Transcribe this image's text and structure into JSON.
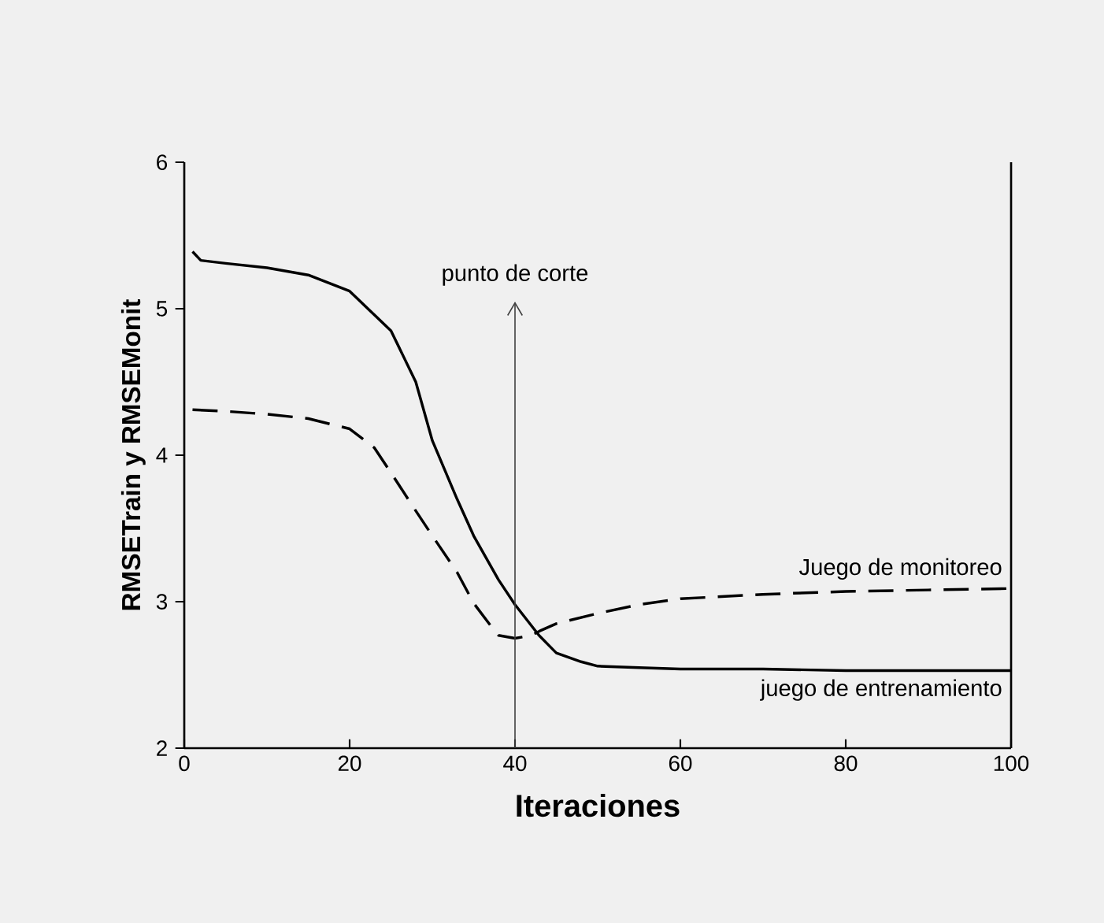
{
  "chart_data": {
    "type": "line",
    "xlabel": "Iteraciones",
    "ylabel": "RMSETrain y RMSEMonit",
    "xlim": [
      0,
      100
    ],
    "ylim": [
      2,
      6
    ],
    "xticks": [
      0,
      20,
      40,
      60,
      80,
      100
    ],
    "yticks": [
      2,
      3,
      4,
      5,
      6
    ],
    "grid": false,
    "legend": false,
    "marker": "none",
    "ref_lines": [
      {
        "axis": "x",
        "value": 40,
        "label": "punto de corte",
        "color": "#404040"
      }
    ],
    "series": [
      {
        "name": "juego de entrenamiento",
        "color": "#000000",
        "line_style": "solid",
        "x": [
          1,
          2,
          5,
          10,
          15,
          20,
          25,
          28,
          30,
          33,
          35,
          38,
          40,
          42.9,
          45,
          48,
          50,
          55,
          60,
          70,
          80,
          90,
          100
        ],
        "values": [
          5.39,
          5.33,
          5.31,
          5.28,
          5.23,
          5.12,
          4.85,
          4.5,
          4.1,
          3.7,
          3.45,
          3.15,
          2.98,
          2.77,
          2.65,
          2.59,
          2.56,
          2.55,
          2.54,
          2.54,
          2.53,
          2.53,
          2.53
        ]
      },
      {
        "name": "Juego de monitoreo",
        "color": "#000000",
        "line_style": "dashed",
        "x": [
          1,
          5,
          10,
          15,
          20,
          23,
          25,
          28,
          30,
          33,
          35,
          37,
          38,
          40,
          42,
          43,
          45,
          50,
          55,
          60,
          70,
          80,
          90,
          100
        ],
        "values": [
          4.31,
          4.3,
          4.28,
          4.25,
          4.18,
          4.05,
          3.88,
          3.62,
          3.45,
          3.2,
          2.99,
          2.84,
          2.77,
          2.75,
          2.77,
          2.8,
          2.85,
          2.92,
          2.98,
          3.02,
          3.05,
          3.07,
          3.08,
          3.09
        ]
      }
    ]
  }
}
